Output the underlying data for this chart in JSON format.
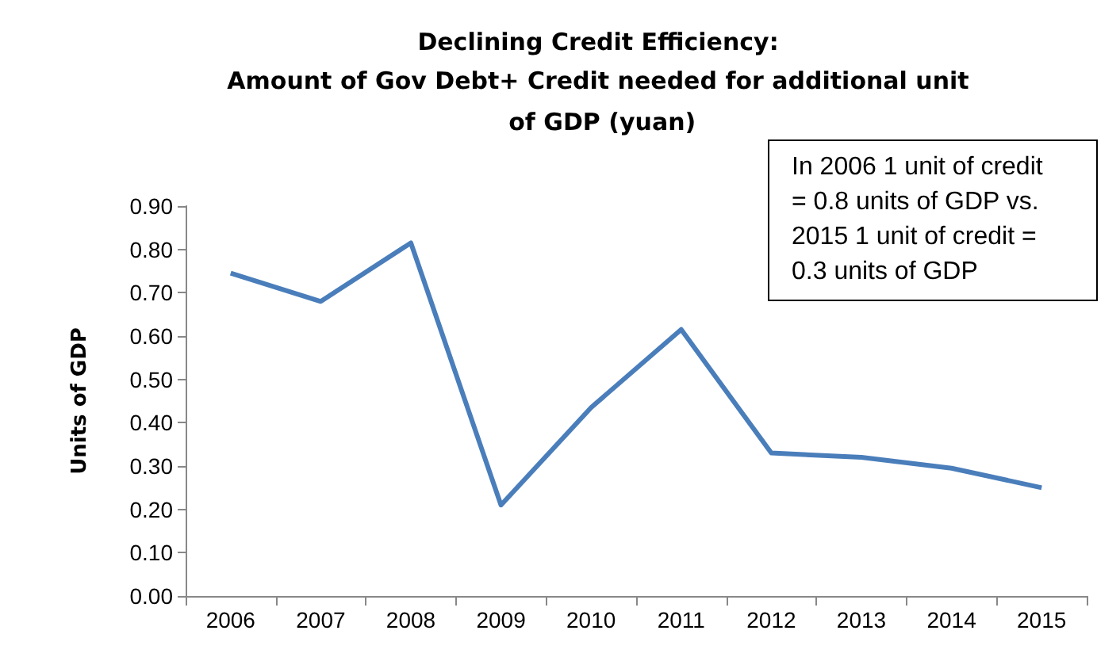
{
  "chart_data": {
    "type": "line",
    "title": "Declining Credit Efficiency:",
    "subtitle": "Amount of Gov Debt+ Credit needed for additional unit of GDP (yuan)",
    "ylabel": "Units of GDP",
    "annotations": [
      "In 2006 1 unit of credit = 0.8 units of GDP vs.  2015 1 unit of credit = 0.3 units of GDP"
    ],
    "categories": [
      "2006",
      "2007",
      "2008",
      "2009",
      "2010",
      "2011",
      "2012",
      "2013",
      "2014",
      "2015"
    ],
    "series": [
      {
        "color": "#4a7ebb",
        "values": [
          0.745,
          0.68,
          0.815,
          0.21,
          0.435,
          0.615,
          0.33,
          0.32,
          0.295,
          0.25
        ]
      }
    ],
    "ylim": [
      0,
      0.9
    ],
    "yticks": [
      {
        "value": 0,
        "label": "0.00"
      },
      {
        "value": 0.1,
        "label": "0.10"
      },
      {
        "value": 0.2,
        "label": "0.20"
      },
      {
        "value": 0.3,
        "label": "0.30"
      },
      {
        "value": 0.4,
        "label": "0.40"
      },
      {
        "value": 0.5,
        "label": "0.50"
      },
      {
        "value": 0.6,
        "label": "0.60"
      },
      {
        "value": 0.7,
        "label": "0.70"
      },
      {
        "value": 0.8,
        "label": "0.80"
      },
      {
        "value": 0.9,
        "label": "0.90"
      }
    ],
    "grid": false,
    "marker": "none",
    "line_style": "solid"
  }
}
